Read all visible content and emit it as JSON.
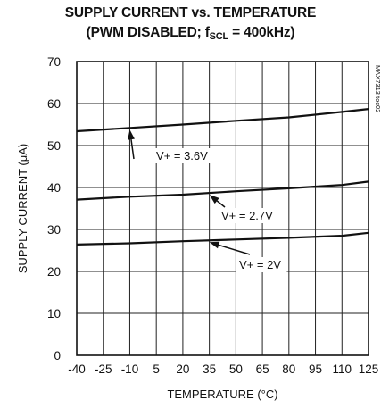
{
  "chart_data": {
    "type": "line",
    "title": "SUPPLY CURRENT vs. TEMPERATURE",
    "subtitle": {
      "before": "(PWM DISABLED; f",
      "subscript": "SCL",
      "after": " = 400kHz)"
    },
    "xlabel": "TEMPERATURE (°C)",
    "ylabel": "SUPPLY CURRENT (μA)",
    "xlim": [
      -40,
      125
    ],
    "ylim": [
      0,
      70
    ],
    "x_ticks": [
      "-40",
      "-25",
      "-10",
      "5",
      "20",
      "35",
      "50",
      "65",
      "80",
      "95",
      "110",
      "125"
    ],
    "y_ticks": [
      "0",
      "10",
      "20",
      "30",
      "40",
      "50",
      "60",
      "70"
    ],
    "grid": true,
    "legend": "none",
    "cut_number": "MAX7313 toc02",
    "series": [
      {
        "name": "V+ = 3.6V",
        "x": [
          -40,
          -10,
          20,
          50,
          80,
          110,
          125
        ],
        "y": [
          53.4,
          54.2,
          55.0,
          55.9,
          56.7,
          58.0,
          58.7
        ]
      },
      {
        "name": "V+ = 2.7V",
        "x": [
          -40,
          -10,
          20,
          50,
          80,
          110,
          125
        ],
        "y": [
          37.1,
          37.8,
          38.3,
          39.1,
          39.8,
          40.6,
          41.4
        ]
      },
      {
        "name": "V+ = 2V",
        "x": [
          -40,
          -10,
          20,
          50,
          80,
          110,
          125
        ],
        "y": [
          26.4,
          26.7,
          27.2,
          27.6,
          28.0,
          28.5,
          29.2
        ]
      }
    ]
  }
}
